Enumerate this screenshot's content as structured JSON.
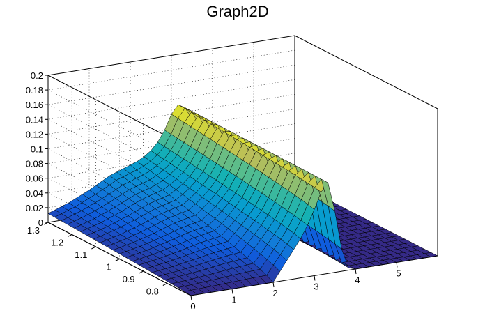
{
  "chart_data": {
    "type": "surface",
    "title": "Graph2D",
    "xlim": [
      0,
      6
    ],
    "ylim": [
      0.7,
      1.3
    ],
    "zlim": [
      0,
      0.2
    ],
    "x_ticks": [
      "0",
      "1",
      "2",
      "3",
      "4",
      "5"
    ],
    "y_ticks": [
      "0.8",
      "0.9",
      "1",
      "1.1",
      "1.2",
      "1.3"
    ],
    "z_ticks": [
      "0",
      "0.02",
      "0.04",
      "0.06",
      "0.08",
      "0.1",
      "0.12",
      "0.14",
      "0.16",
      "0.18",
      "0.2"
    ],
    "grid": "dotted",
    "colormap": "kBird",
    "surface_profile": {
      "x": [
        0,
        0.5,
        1.0,
        1.5,
        2.0,
        2.25,
        2.5,
        2.75,
        3.0,
        3.15,
        3.3,
        3.45,
        3.6,
        3.75,
        4.0,
        4.5,
        5.0,
        5.5,
        6.0
      ],
      "z_back": [
        0.012,
        0.022,
        0.035,
        0.05,
        0.06,
        0.065,
        0.075,
        0.09,
        0.12,
        0.132,
        0.128,
        0.118,
        0.09,
        0.02,
        0,
        0,
        0,
        0,
        0
      ],
      "z_front": [
        0,
        0,
        0,
        0,
        0,
        0.02,
        0.04,
        0.06,
        0.09,
        0.11,
        0.13,
        0.1,
        0.05,
        0.005,
        0,
        0,
        0,
        0,
        0
      ]
    }
  }
}
